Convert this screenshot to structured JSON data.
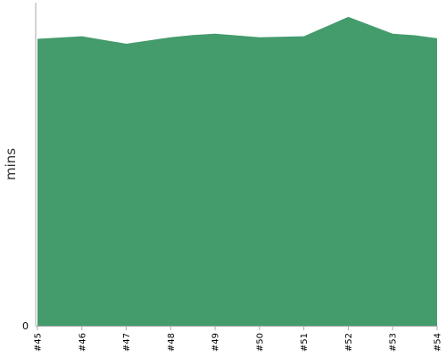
{
  "chart_data": {
    "type": "area",
    "title": "",
    "xlabel": "",
    "ylabel": "mins",
    "categories": [
      "#45",
      "#46",
      "#47",
      "#48",
      "#49",
      "#50",
      "#51",
      "#52",
      "#53",
      "#54"
    ],
    "x_positions": [
      0,
      1,
      2,
      3,
      4,
      5,
      6,
      7,
      8,
      9
    ],
    "series": [
      {
        "x": [
          0,
          1,
          2,
          3,
          3.5,
          4,
          5,
          6,
          7,
          8,
          8.5,
          9
        ],
        "values": [
          88.8,
          89.6,
          87.3,
          89.3,
          90.0,
          90.4,
          89.3,
          89.6,
          95.6,
          90.4,
          89.9,
          89.0
        ],
        "color": "#449b6c"
      }
    ],
    "y_tick_labels": [
      "0"
    ],
    "ylim": [
      0,
      100
    ],
    "grid": false,
    "colors": {
      "area": "#449b6c",
      "axis": "#aaaaaa"
    }
  }
}
